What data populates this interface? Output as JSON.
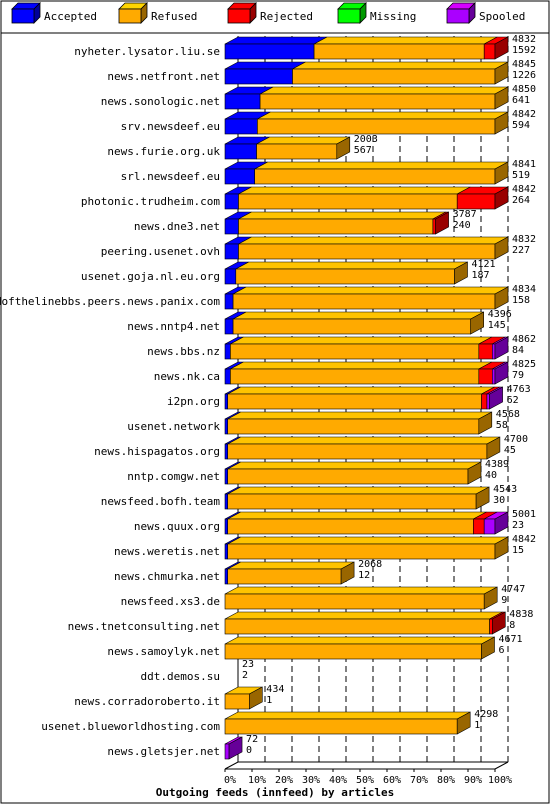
{
  "chart_data": {
    "type": "bar",
    "orientation": "horizontal",
    "stacked": true,
    "title": "Outgoing feeds (innfeed) by articles",
    "x_unit": "percent of articles",
    "xlim": [
      0,
      100
    ],
    "x_ticks": [
      "0%",
      "10%",
      "20%",
      "30%",
      "40%",
      "50%",
      "60%",
      "70%",
      "80%",
      "90%",
      "100%"
    ],
    "legend_position": "top",
    "series": [
      {
        "name": "Accepted",
        "color": "#0000ff"
      },
      {
        "name": "Refused",
        "color": "#ffaa00"
      },
      {
        "name": "Rejected",
        "color": "#ff0000"
      },
      {
        "name": "Missing",
        "color": "#00ff00"
      },
      {
        "name": "Spooled",
        "color": "#aa00ff"
      }
    ],
    "feeds": [
      {
        "name": "nyheter.lysator.liu.se",
        "offered": "4832",
        "accepted": "1592",
        "pct": {
          "accepted": 33,
          "refused": 63,
          "rejected": 4,
          "missing": 0,
          "spooled": 0
        }
      },
      {
        "name": "news.netfront.net",
        "offered": "4845",
        "accepted": "1226",
        "pct": {
          "accepted": 25,
          "refused": 75,
          "rejected": 0,
          "missing": 0,
          "spooled": 0
        }
      },
      {
        "name": "news.sonologic.net",
        "offered": "4850",
        "accepted": "641",
        "pct": {
          "accepted": 13,
          "refused": 87,
          "rejected": 0,
          "missing": 0,
          "spooled": 0
        }
      },
      {
        "name": "srv.newsdeef.eu",
        "offered": "4842",
        "accepted": "594",
        "pct": {
          "accepted": 12,
          "refused": 88,
          "rejected": 0,
          "missing": 0,
          "spooled": 0
        }
      },
      {
        "name": "news.furie.org.uk",
        "offered": "2003",
        "accepted": "567",
        "pct": {
          "accepted": 11.7,
          "refused": 29.7,
          "rejected": 0,
          "missing": 0,
          "spooled": 0
        }
      },
      {
        "name": "srl.newsdeef.eu",
        "offered": "4841",
        "accepted": "519",
        "pct": {
          "accepted": 11,
          "refused": 89,
          "rejected": 0,
          "missing": 0,
          "spooled": 0
        }
      },
      {
        "name": "photonic.trudheim.com",
        "offered": "4842",
        "accepted": "264",
        "pct": {
          "accepted": 5,
          "refused": 81,
          "rejected": 14,
          "missing": 0,
          "spooled": 0
        }
      },
      {
        "name": "news.dne3.net",
        "offered": "3787",
        "accepted": "240",
        "pct": {
          "accepted": 5,
          "refused": 72,
          "rejected": 1,
          "missing": 0,
          "spooled": 0
        }
      },
      {
        "name": "peering.usenet.ovh",
        "offered": "4832",
        "accepted": "227",
        "pct": {
          "accepted": 5,
          "refused": 95,
          "rejected": 0,
          "missing": 0,
          "spooled": 0
        }
      },
      {
        "name": "usenet.goja.nl.eu.org",
        "offered": "4121",
        "accepted": "187",
        "pct": {
          "accepted": 4,
          "refused": 81,
          "rejected": 0,
          "missing": 0,
          "spooled": 0
        }
      },
      {
        "name": "endofthelinebbs.peers.news.panix.com",
        "offered": "4834",
        "accepted": "158",
        "pct": {
          "accepted": 3,
          "refused": 97,
          "rejected": 0,
          "missing": 0,
          "spooled": 0
        }
      },
      {
        "name": "news.nntp4.net",
        "offered": "4396",
        "accepted": "145",
        "pct": {
          "accepted": 3,
          "refused": 88,
          "rejected": 0,
          "missing": 0,
          "spooled": 0
        }
      },
      {
        "name": "news.bbs.nz",
        "offered": "4862",
        "accepted": "84",
        "pct": {
          "accepted": 2,
          "refused": 92,
          "rejected": 5,
          "missing": 0,
          "spooled": 1
        }
      },
      {
        "name": "news.nk.ca",
        "offered": "4825",
        "accepted": "79",
        "pct": {
          "accepted": 2,
          "refused": 92,
          "rejected": 5,
          "missing": 0,
          "spooled": 1
        }
      },
      {
        "name": "i2pn.org",
        "offered": "4763",
        "accepted": "62",
        "pct": {
          "accepted": 1,
          "refused": 94,
          "rejected": 2,
          "missing": 0,
          "spooled": 1
        }
      },
      {
        "name": "usenet.network",
        "offered": "4568",
        "accepted": "58",
        "pct": {
          "accepted": 1,
          "refused": 93,
          "rejected": 0,
          "missing": 0,
          "spooled": 0
        }
      },
      {
        "name": "news.hispagatos.org",
        "offered": "4700",
        "accepted": "45",
        "pct": {
          "accepted": 1,
          "refused": 96,
          "rejected": 0,
          "missing": 0,
          "spooled": 0
        }
      },
      {
        "name": "nntp.comgw.net",
        "offered": "4389",
        "accepted": "40",
        "pct": {
          "accepted": 1,
          "refused": 89,
          "rejected": 0,
          "missing": 0,
          "spooled": 0
        }
      },
      {
        "name": "newsfeed.bofh.team",
        "offered": "4543",
        "accepted": "30",
        "pct": {
          "accepted": 1,
          "refused": 92,
          "rejected": 0,
          "missing": 0,
          "spooled": 0
        }
      },
      {
        "name": "news.quux.org",
        "offered": "5001",
        "accepted": "23",
        "pct": {
          "accepted": 1,
          "refused": 91,
          "rejected": 4,
          "missing": 0,
          "spooled": 4
        }
      },
      {
        "name": "news.weretis.net",
        "offered": "4842",
        "accepted": "15",
        "pct": {
          "accepted": 1,
          "refused": 99,
          "rejected": 0,
          "missing": 0,
          "spooled": 0
        }
      },
      {
        "name": "news.chmurka.net",
        "offered": "2068",
        "accepted": "12",
        "pct": {
          "accepted": 1,
          "refused": 42,
          "rejected": 0,
          "missing": 0,
          "spooled": 0
        }
      },
      {
        "name": "newsfeed.xs3.de",
        "offered": "4747",
        "accepted": "9",
        "pct": {
          "accepted": 0,
          "refused": 96,
          "rejected": 0,
          "missing": 0,
          "spooled": 0
        }
      },
      {
        "name": "news.tnetconsulting.net",
        "offered": "4838",
        "accepted": "8",
        "pct": {
          "accepted": 0,
          "refused": 98,
          "rejected": 1,
          "missing": 0,
          "spooled": 0
        }
      },
      {
        "name": "news.samoylyk.net",
        "offered": "4671",
        "accepted": "6",
        "pct": {
          "accepted": 0,
          "refused": 95,
          "rejected": 0,
          "missing": 0,
          "spooled": 0
        }
      },
      {
        "name": "ddt.demos.su",
        "offered": "23",
        "accepted": "2",
        "pct": {
          "accepted": 0,
          "refused": 0,
          "rejected": 0,
          "missing": 0,
          "spooled": 0
        }
      },
      {
        "name": "news.corradoroberto.it",
        "offered": "434",
        "accepted": "1",
        "pct": {
          "accepted": 0,
          "refused": 9,
          "rejected": 0,
          "missing": 0,
          "spooled": 0
        }
      },
      {
        "name": "usenet.blueworldhosting.com",
        "offered": "4298",
        "accepted": "1",
        "pct": {
          "accepted": 0,
          "refused": 86,
          "rejected": 0,
          "missing": 0,
          "spooled": 0
        }
      },
      {
        "name": "news.gletsjer.net",
        "offered": "72",
        "accepted": "0",
        "pct": {
          "accepted": 0,
          "refused": 0,
          "rejected": 0,
          "missing": 0,
          "spooled": 1.5
        }
      }
    ]
  }
}
